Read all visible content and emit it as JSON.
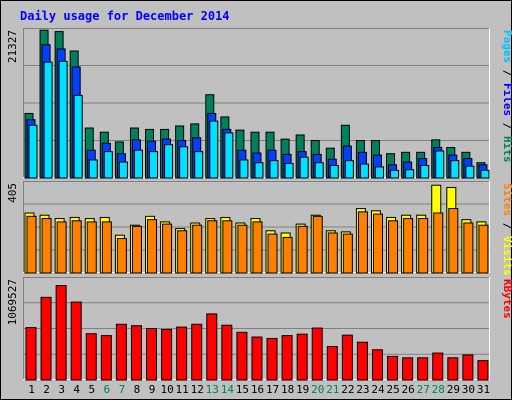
{
  "chart_data": {
    "type": "bar",
    "title": "Daily usage for December 2014",
    "categories": [
      "1",
      "2",
      "3",
      "4",
      "5",
      "6",
      "7",
      "8",
      "9",
      "10",
      "11",
      "12",
      "13",
      "14",
      "15",
      "16",
      "17",
      "18",
      "19",
      "20",
      "21",
      "22",
      "23",
      "24",
      "25",
      "26",
      "27",
      "28",
      "29",
      "30",
      "31"
    ],
    "weekend_days": [
      "6",
      "7",
      "13",
      "14",
      "20",
      "21",
      "27",
      "28"
    ],
    "panels": [
      {
        "id": "top",
        "ymax_label": "21327",
        "ylim": [
          0,
          21327
        ],
        "right_label": [
          {
            "text": "Pages",
            "color": "#00c0ff"
          },
          {
            "text": " / ",
            "color": "#000000"
          },
          {
            "text": "Files",
            "color": "#0000ff"
          },
          {
            "text": " / ",
            "color": "#000000"
          },
          {
            "text": "Hits",
            "color": "#00805c"
          }
        ],
        "series": [
          {
            "name": "Hits",
            "color": "#00805c",
            "values": [
              9300,
              21300,
              21100,
              18300,
              7200,
              6600,
              5200,
              7200,
              7000,
              7000,
              7500,
              7800,
              12000,
              8800,
              6900,
              6600,
              6600,
              5600,
              6200,
              5400,
              4300,
              7600,
              5400,
              5400,
              3500,
              3700,
              3700,
              5500,
              4400,
              3700,
              2200
            ]
          },
          {
            "name": "Files",
            "color": "#0040ff",
            "values": [
              8400,
              19200,
              18600,
              16000,
              4000,
              5000,
              3500,
              5500,
              5300,
              5600,
              5400,
              5800,
              9300,
              7000,
              4000,
              3600,
              4000,
              3400,
              3800,
              3400,
              2700,
              4600,
              3700,
              3300,
              1900,
              2300,
              2800,
              4400,
              3300,
              2800,
              1900
            ]
          },
          {
            "name": "Pages",
            "color": "#00e0ff",
            "values": [
              7600,
              16700,
              16800,
              11900,
              2600,
              3800,
              2300,
              4000,
              3800,
              4800,
              4500,
              3800,
              8200,
              6500,
              2600,
              2200,
              2500,
              2100,
              3000,
              2200,
              1800,
              2500,
              2000,
              1600,
              1100,
              1200,
              1800,
              3900,
              2500,
              1700,
              1100
            ]
          }
        ]
      },
      {
        "id": "middle",
        "ymax_label": "405",
        "ylim": [
          0,
          405
        ],
        "right_label": [
          {
            "text": "Sites",
            "color": "#ff8000"
          },
          {
            "text": " / ",
            "color": "#000000"
          },
          {
            "text": "Visits",
            "color": "#ffff00"
          }
        ],
        "series": [
          {
            "name": "Visits",
            "color": "#ffff00",
            "values": [
              270,
              260,
              245,
              250,
              245,
              250,
              170,
              215,
              255,
              230,
              200,
              225,
              245,
              250,
              225,
              245,
              190,
              180,
              220,
              260,
              190,
              185,
              290,
              280,
              250,
              260,
              260,
              395,
              385,
              240,
              230
            ]
          },
          {
            "name": "Sites",
            "color": "#ff8000",
            "values": [
              255,
              245,
              230,
              235,
              230,
              230,
              155,
              210,
              240,
              220,
              190,
              215,
              235,
              235,
              215,
              230,
              175,
              160,
              210,
              255,
              180,
              175,
              275,
              265,
              235,
              245,
              245,
              270,
              290,
              225,
              215
            ]
          }
        ]
      },
      {
        "id": "bottom",
        "ymax_label": "1069527",
        "ylim": [
          0,
          1069527
        ],
        "right_label": [
          {
            "text": "KBytes",
            "color": "#ff0000"
          }
        ],
        "series": [
          {
            "name": "KBytes",
            "color": "#ff0000",
            "values": [
              555000,
              875000,
              1000000,
              825000,
              490000,
              470000,
              590000,
              575000,
              545000,
              535000,
              560000,
              590000,
              700000,
              580000,
              505000,
              455000,
              440000,
              470000,
              485000,
              550000,
              355000,
              475000,
              400000,
              320000,
              250000,
              235000,
              235000,
              285000,
              235000,
              265000,
              205000
            ]
          }
        ]
      }
    ]
  }
}
